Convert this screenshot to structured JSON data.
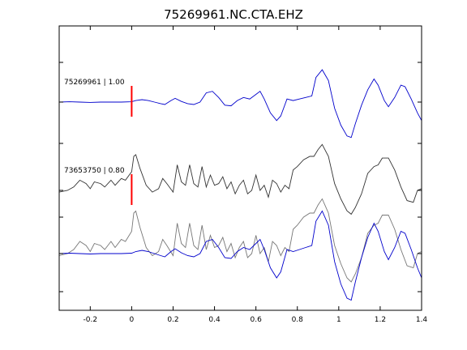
{
  "chart_data": {
    "type": "line",
    "title": "75269961.NC.CTA.EHZ",
    "xlabel": "",
    "ylabel": "",
    "xlim": [
      -0.35,
      1.4
    ],
    "x_ticks": [
      -0.2,
      0,
      0.2,
      0.4,
      0.6,
      0.8,
      1,
      1.2,
      1.4
    ],
    "x_tick_labels": [
      "-0.2",
      "0",
      "0.2",
      "0.4",
      "0.6",
      "0.8",
      "1",
      "1.2",
      "1.4"
    ],
    "grid": false,
    "pick_time": 0,
    "traces": [
      {
        "label": "75269961 | 1.00",
        "color": "#0000cc",
        "points": [
          [
            -0.35,
            0.0
          ],
          [
            -0.3,
            0.01
          ],
          [
            -0.25,
            0.0
          ],
          [
            -0.2,
            -0.01
          ],
          [
            -0.15,
            0.0
          ],
          [
            -0.1,
            0.0
          ],
          [
            -0.05,
            0.0
          ],
          [
            0.0,
            0.01
          ],
          [
            0.02,
            0.05
          ],
          [
            0.05,
            0.08
          ],
          [
            0.08,
            0.05
          ],
          [
            0.11,
            0.0
          ],
          [
            0.14,
            -0.05
          ],
          [
            0.16,
            -0.08
          ],
          [
            0.19,
            0.05
          ],
          [
            0.21,
            0.12
          ],
          [
            0.24,
            0.02
          ],
          [
            0.27,
            -0.05
          ],
          [
            0.3,
            -0.08
          ],
          [
            0.33,
            0.0
          ],
          [
            0.36,
            0.3
          ],
          [
            0.39,
            0.35
          ],
          [
            0.42,
            0.15
          ],
          [
            0.45,
            -0.1
          ],
          [
            0.48,
            -0.12
          ],
          [
            0.51,
            0.05
          ],
          [
            0.54,
            0.15
          ],
          [
            0.57,
            0.1
          ],
          [
            0.6,
            0.25
          ],
          [
            0.62,
            0.35
          ],
          [
            0.64,
            0.1
          ],
          [
            0.67,
            -0.35
          ],
          [
            0.7,
            -0.6
          ],
          [
            0.72,
            -0.45
          ],
          [
            0.75,
            0.1
          ],
          [
            0.78,
            0.05
          ],
          [
            0.81,
            0.1
          ],
          [
            0.84,
            0.15
          ],
          [
            0.87,
            0.2
          ],
          [
            0.89,
            0.8
          ],
          [
            0.92,
            1.05
          ],
          [
            0.95,
            0.7
          ],
          [
            0.98,
            -0.2
          ],
          [
            1.01,
            -0.75
          ],
          [
            1.04,
            -1.1
          ],
          [
            1.06,
            -1.15
          ],
          [
            1.08,
            -0.7
          ],
          [
            1.11,
            -0.1
          ],
          [
            1.14,
            0.4
          ],
          [
            1.17,
            0.75
          ],
          [
            1.19,
            0.55
          ],
          [
            1.22,
            0.05
          ],
          [
            1.24,
            -0.15
          ],
          [
            1.27,
            0.15
          ],
          [
            1.3,
            0.55
          ],
          [
            1.32,
            0.5
          ],
          [
            1.35,
            0.1
          ],
          [
            1.38,
            -0.35
          ],
          [
            1.4,
            -0.6
          ]
        ]
      },
      {
        "label": "73653750 | 0.80",
        "color": "#333333",
        "points": [
          [
            -0.35,
            -0.05
          ],
          [
            -0.31,
            0.0
          ],
          [
            -0.28,
            0.1
          ],
          [
            -0.25,
            0.3
          ],
          [
            -0.22,
            0.2
          ],
          [
            -0.2,
            0.05
          ],
          [
            -0.18,
            0.25
          ],
          [
            -0.15,
            0.2
          ],
          [
            -0.13,
            0.1
          ],
          [
            -0.1,
            0.3
          ],
          [
            -0.08,
            0.15
          ],
          [
            -0.05,
            0.35
          ],
          [
            -0.03,
            0.3
          ],
          [
            0.0,
            0.55
          ],
          [
            0.01,
            1.0
          ],
          [
            0.02,
            1.05
          ],
          [
            0.04,
            0.65
          ],
          [
            0.07,
            0.15
          ],
          [
            0.1,
            -0.05
          ],
          [
            0.13,
            0.05
          ],
          [
            0.15,
            0.35
          ],
          [
            0.17,
            0.2
          ],
          [
            0.2,
            -0.05
          ],
          [
            0.22,
            0.75
          ],
          [
            0.24,
            0.25
          ],
          [
            0.26,
            0.15
          ],
          [
            0.28,
            0.75
          ],
          [
            0.3,
            0.2
          ],
          [
            0.32,
            0.1
          ],
          [
            0.34,
            0.7
          ],
          [
            0.36,
            0.1
          ],
          [
            0.38,
            0.45
          ],
          [
            0.4,
            0.15
          ],
          [
            0.42,
            0.2
          ],
          [
            0.44,
            0.4
          ],
          [
            0.46,
            0.05
          ],
          [
            0.48,
            0.25
          ],
          [
            0.5,
            -0.1
          ],
          [
            0.52,
            0.15
          ],
          [
            0.54,
            0.3
          ],
          [
            0.56,
            -0.1
          ],
          [
            0.58,
            0.0
          ],
          [
            0.6,
            0.45
          ],
          [
            0.62,
            0.0
          ],
          [
            0.64,
            0.15
          ],
          [
            0.66,
            -0.2
          ],
          [
            0.68,
            0.3
          ],
          [
            0.7,
            0.2
          ],
          [
            0.72,
            -0.05
          ],
          [
            0.74,
            0.15
          ],
          [
            0.76,
            0.05
          ],
          [
            0.78,
            0.6
          ],
          [
            0.8,
            0.7
          ],
          [
            0.83,
            0.9
          ],
          [
            0.86,
            1.0
          ],
          [
            0.88,
            1.0
          ],
          [
            0.9,
            1.2
          ],
          [
            0.92,
            1.35
          ],
          [
            0.95,
            1.0
          ],
          [
            0.98,
            0.2
          ],
          [
            1.01,
            -0.25
          ],
          [
            1.04,
            -0.6
          ],
          [
            1.06,
            -0.7
          ],
          [
            1.08,
            -0.5
          ],
          [
            1.11,
            -0.1
          ],
          [
            1.14,
            0.5
          ],
          [
            1.17,
            0.7
          ],
          [
            1.19,
            0.75
          ],
          [
            1.21,
            0.95
          ],
          [
            1.24,
            0.95
          ],
          [
            1.27,
            0.6
          ],
          [
            1.3,
            0.1
          ],
          [
            1.33,
            -0.3
          ],
          [
            1.36,
            -0.35
          ],
          [
            1.38,
            0.0
          ],
          [
            1.4,
            0.05
          ]
        ]
      },
      {
        "label": "",
        "color": "#0000cc",
        "points": [
          [
            -0.35,
            0.0
          ],
          [
            -0.3,
            0.01
          ],
          [
            -0.25,
            0.0
          ],
          [
            -0.2,
            -0.01
          ],
          [
            -0.15,
            0.0
          ],
          [
            -0.1,
            0.0
          ],
          [
            -0.05,
            0.0
          ],
          [
            0.0,
            0.01
          ],
          [
            0.02,
            0.05
          ],
          [
            0.05,
            0.08
          ],
          [
            0.08,
            0.05
          ],
          [
            0.11,
            0.0
          ],
          [
            0.14,
            -0.05
          ],
          [
            0.16,
            -0.08
          ],
          [
            0.19,
            0.05
          ],
          [
            0.21,
            0.12
          ],
          [
            0.24,
            0.02
          ],
          [
            0.27,
            -0.05
          ],
          [
            0.3,
            -0.08
          ],
          [
            0.33,
            0.0
          ],
          [
            0.36,
            0.3
          ],
          [
            0.39,
            0.35
          ],
          [
            0.42,
            0.15
          ],
          [
            0.45,
            -0.1
          ],
          [
            0.48,
            -0.12
          ],
          [
            0.51,
            0.05
          ],
          [
            0.54,
            0.15
          ],
          [
            0.57,
            0.1
          ],
          [
            0.6,
            0.25
          ],
          [
            0.62,
            0.35
          ],
          [
            0.64,
            0.1
          ],
          [
            0.67,
            -0.35
          ],
          [
            0.7,
            -0.6
          ],
          [
            0.72,
            -0.45
          ],
          [
            0.75,
            0.1
          ],
          [
            0.78,
            0.05
          ],
          [
            0.81,
            0.1
          ],
          [
            0.84,
            0.15
          ],
          [
            0.87,
            0.2
          ],
          [
            0.89,
            0.8
          ],
          [
            0.92,
            1.05
          ],
          [
            0.95,
            0.7
          ],
          [
            0.98,
            -0.2
          ],
          [
            1.01,
            -0.75
          ],
          [
            1.04,
            -1.1
          ],
          [
            1.06,
            -1.15
          ],
          [
            1.08,
            -0.7
          ],
          [
            1.11,
            -0.1
          ],
          [
            1.14,
            0.4
          ],
          [
            1.17,
            0.75
          ],
          [
            1.19,
            0.55
          ],
          [
            1.22,
            0.05
          ],
          [
            1.24,
            -0.15
          ],
          [
            1.27,
            0.15
          ],
          [
            1.3,
            0.55
          ],
          [
            1.32,
            0.5
          ],
          [
            1.35,
            0.1
          ],
          [
            1.38,
            -0.35
          ],
          [
            1.4,
            -0.6
          ]
        ]
      },
      {
        "label": "",
        "color": "#777777",
        "points": [
          [
            -0.35,
            -0.05
          ],
          [
            -0.31,
            0.0
          ],
          [
            -0.28,
            0.1
          ],
          [
            -0.25,
            0.3
          ],
          [
            -0.22,
            0.2
          ],
          [
            -0.2,
            0.05
          ],
          [
            -0.18,
            0.25
          ],
          [
            -0.15,
            0.2
          ],
          [
            -0.13,
            0.1
          ],
          [
            -0.1,
            0.3
          ],
          [
            -0.08,
            0.15
          ],
          [
            -0.05,
            0.35
          ],
          [
            -0.03,
            0.3
          ],
          [
            0.0,
            0.55
          ],
          [
            0.01,
            1.0
          ],
          [
            0.02,
            1.05
          ],
          [
            0.04,
            0.65
          ],
          [
            0.07,
            0.15
          ],
          [
            0.1,
            -0.05
          ],
          [
            0.13,
            0.05
          ],
          [
            0.15,
            0.35
          ],
          [
            0.17,
            0.2
          ],
          [
            0.2,
            -0.05
          ],
          [
            0.22,
            0.75
          ],
          [
            0.24,
            0.25
          ],
          [
            0.26,
            0.15
          ],
          [
            0.28,
            0.75
          ],
          [
            0.3,
            0.2
          ],
          [
            0.32,
            0.1
          ],
          [
            0.34,
            0.7
          ],
          [
            0.36,
            0.1
          ],
          [
            0.38,
            0.45
          ],
          [
            0.4,
            0.15
          ],
          [
            0.42,
            0.2
          ],
          [
            0.44,
            0.4
          ],
          [
            0.46,
            0.05
          ],
          [
            0.48,
            0.25
          ],
          [
            0.5,
            -0.1
          ],
          [
            0.52,
            0.15
          ],
          [
            0.54,
            0.3
          ],
          [
            0.56,
            -0.1
          ],
          [
            0.58,
            0.0
          ],
          [
            0.6,
            0.45
          ],
          [
            0.62,
            0.0
          ],
          [
            0.64,
            0.15
          ],
          [
            0.66,
            -0.2
          ],
          [
            0.68,
            0.3
          ],
          [
            0.7,
            0.2
          ],
          [
            0.72,
            -0.05
          ],
          [
            0.74,
            0.15
          ],
          [
            0.76,
            0.05
          ],
          [
            0.78,
            0.6
          ],
          [
            0.8,
            0.7
          ],
          [
            0.83,
            0.9
          ],
          [
            0.86,
            1.0
          ],
          [
            0.88,
            1.0
          ],
          [
            0.9,
            1.2
          ],
          [
            0.92,
            1.35
          ],
          [
            0.95,
            1.0
          ],
          [
            0.98,
            0.2
          ],
          [
            1.01,
            -0.25
          ],
          [
            1.04,
            -0.6
          ],
          [
            1.06,
            -0.7
          ],
          [
            1.08,
            -0.5
          ],
          [
            1.11,
            -0.1
          ],
          [
            1.14,
            0.5
          ],
          [
            1.17,
            0.7
          ],
          [
            1.19,
            0.75
          ],
          [
            1.21,
            0.95
          ],
          [
            1.24,
            0.95
          ],
          [
            1.27,
            0.6
          ],
          [
            1.3,
            0.1
          ],
          [
            1.33,
            -0.3
          ],
          [
            1.36,
            -0.35
          ],
          [
            1.38,
            0.0
          ],
          [
            1.4,
            0.05
          ]
        ]
      }
    ],
    "pick_color": "#ff0000"
  }
}
